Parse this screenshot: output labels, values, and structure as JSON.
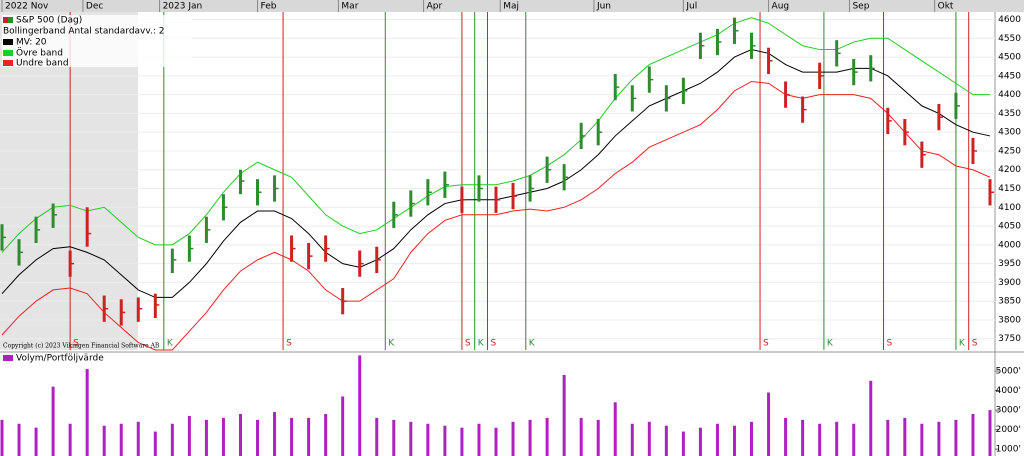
{
  "chart_data": {
    "type": "ohlc",
    "title": "S&P 500 (Dag)",
    "indicator_label": "Bollingerband  Antal standardavv.: 2",
    "copyright": "Copyright (c) 2023 Vikingen Financial Software AB",
    "buy_color": "#2e8b2e",
    "sell_color": "#cc2222",
    "x": [
      0,
      4,
      8,
      12,
      16,
      20,
      24,
      28,
      32,
      36,
      40,
      44,
      48,
      52,
      56,
      60,
      64,
      68,
      72,
      76,
      80,
      84,
      88,
      92,
      96,
      100,
      104,
      108,
      112,
      116,
      120,
      124,
      128,
      132,
      136,
      140,
      144,
      148,
      152,
      156,
      160,
      164,
      168,
      172,
      176,
      180,
      184,
      188,
      192,
      196,
      200,
      204,
      208,
      212,
      216,
      220,
      224,
      228,
      232
    ],
    "xlim": [
      0,
      232
    ],
    "xticks": [
      {
        "value": 0,
        "label": "2022 Nov"
      },
      {
        "value": 19,
        "label": "Dec"
      },
      {
        "value": 37,
        "label": "2023 Jan"
      },
      {
        "value": 60,
        "label": "Feb"
      },
      {
        "value": 79,
        "label": "Mar"
      },
      {
        "value": 99,
        "label": "Apr"
      },
      {
        "value": 117,
        "label": "Maj"
      },
      {
        "value": 139,
        "label": "Jun"
      },
      {
        "value": 160,
        "label": "Jul"
      },
      {
        "value": 180,
        "label": "Aug"
      },
      {
        "value": 199,
        "label": "Sep"
      },
      {
        "value": 219,
        "label": "Okt"
      }
    ],
    "high": [
      4055,
      4015,
      4075,
      4110,
      3985,
      4100,
      3865,
      3855,
      3860,
      3870,
      3990,
      4025,
      4075,
      4135,
      4200,
      4175,
      4185,
      4025,
      4005,
      4025,
      3885,
      3985,
      3995,
      4115,
      4145,
      4175,
      4195,
      4155,
      4185,
      4155,
      4165,
      4185,
      4235,
      4215,
      4325,
      4335,
      4455,
      4425,
      4475,
      4425,
      4445,
      4565,
      4575,
      4605,
      4565,
      4525,
      4435,
      4395,
      4485,
      4545,
      4495,
      4505,
      4365,
      4335,
      4275,
      4375,
      4405,
      4285,
      4175
    ],
    "low": [
      3985,
      3945,
      4005,
      4045,
      3915,
      3995,
      3795,
      3785,
      3795,
      3805,
      3925,
      3955,
      4005,
      4065,
      4135,
      4105,
      4115,
      3955,
      3935,
      3955,
      3815,
      3915,
      3925,
      4045,
      4075,
      4105,
      4125,
      4085,
      4115,
      4085,
      4095,
      4115,
      4165,
      4145,
      4255,
      4265,
      4385,
      4355,
      4405,
      4355,
      4375,
      4495,
      4505,
      4535,
      4495,
      4455,
      4365,
      4325,
      4415,
      4475,
      4425,
      4435,
      4295,
      4265,
      4205,
      4305,
      4335,
      4215,
      4105
    ],
    "close": [
      4020,
      3980,
      4040,
      4080,
      3950,
      4030,
      3830,
      3820,
      3830,
      3840,
      3960,
      3990,
      4040,
      4100,
      4170,
      4140,
      4150,
      3990,
      3970,
      3990,
      3850,
      3950,
      3960,
      4080,
      4110,
      4140,
      4160,
      4120,
      4150,
      4120,
      4130,
      4150,
      4200,
      4180,
      4290,
      4300,
      4420,
      4390,
      4440,
      4390,
      4410,
      4530,
      4540,
      4570,
      4530,
      4490,
      4400,
      4360,
      4450,
      4510,
      4460,
      4470,
      4330,
      4300,
      4240,
      4340,
      4370,
      4250,
      4140
    ],
    "series": [
      {
        "name": "MV: 20",
        "color": "#000000",
        "values": [
          3870,
          3920,
          3960,
          3990,
          3995,
          3980,
          3960,
          3920,
          3880,
          3860,
          3860,
          3900,
          3950,
          4010,
          4060,
          4090,
          4090,
          4070,
          4030,
          3980,
          3950,
          3940,
          3960,
          3990,
          4040,
          4080,
          4110,
          4120,
          4120,
          4120,
          4130,
          4140,
          4150,
          4170,
          4200,
          4240,
          4290,
          4330,
          4370,
          4390,
          4410,
          4430,
          4460,
          4500,
          4520,
          4510,
          4480,
          4460,
          4460,
          4460,
          4470,
          4470,
          4450,
          4410,
          4370,
          4350,
          4320,
          4300,
          4290
        ]
      },
      {
        "name": "Övre band",
        "color": "#22cc22",
        "values": [
          3980,
          4030,
          4070,
          4100,
          4105,
          4090,
          4100,
          4060,
          4020,
          4000,
          4000,
          4030,
          4080,
          4140,
          4190,
          4220,
          4200,
          4180,
          4130,
          4080,
          4050,
          4030,
          4040,
          4070,
          4100,
          4130,
          4155,
          4160,
          4160,
          4160,
          4170,
          4185,
          4210,
          4240,
          4280,
          4330,
          4390,
          4440,
          4480,
          4500,
          4520,
          4540,
          4560,
          4590,
          4605,
          4590,
          4560,
          4530,
          4520,
          4520,
          4540,
          4550,
          4550,
          4520,
          4490,
          4460,
          4430,
          4400,
          4400
        ]
      },
      {
        "name": "Undre band",
        "color": "#ee2222",
        "values": [
          3760,
          3810,
          3850,
          3880,
          3885,
          3870,
          3820,
          3780,
          3740,
          3720,
          3720,
          3770,
          3820,
          3880,
          3930,
          3960,
          3980,
          3960,
          3930,
          3880,
          3850,
          3850,
          3880,
          3910,
          3980,
          4030,
          4065,
          4080,
          4080,
          4080,
          4090,
          4095,
          4090,
          4100,
          4120,
          4150,
          4190,
          4220,
          4260,
          4280,
          4300,
          4320,
          4360,
          4410,
          4435,
          4430,
          4400,
          4390,
          4400,
          4400,
          4400,
          4390,
          4350,
          4300,
          4250,
          4240,
          4210,
          4200,
          4180
        ]
      }
    ],
    "signals": [
      {
        "x": 16,
        "label": "S"
      },
      {
        "x": 38,
        "label": "K"
      },
      {
        "x": 66,
        "label": "S"
      },
      {
        "x": 90,
        "label": "K"
      },
      {
        "x": 108,
        "label": "S"
      },
      {
        "x": 111,
        "label": "K"
      },
      {
        "x": 114,
        "label": "S"
      },
      {
        "x": 123,
        "label": "K"
      },
      {
        "x": 178,
        "label": "S"
      },
      {
        "x": 193,
        "label": "K"
      },
      {
        "x": 207,
        "label": "S"
      },
      {
        "x": 224,
        "label": "K"
      },
      {
        "x": 227,
        "label": "S"
      }
    ],
    "ylim": [
      3720,
      4620
    ],
    "yticks": [
      3750,
      3800,
      3850,
      3900,
      3950,
      4000,
      4050,
      4100,
      4150,
      4200,
      4250,
      4300,
      4350,
      4400,
      4450,
      4500,
      4550,
      4600
    ],
    "volume": {
      "name": "Volym/Portföljvärde",
      "color": "#b020c0",
      "values": [
        2500,
        2300,
        2100,
        4200,
        2300,
        5100,
        2200,
        2300,
        2400,
        1900,
        2300,
        2700,
        2500,
        2600,
        2800,
        2500,
        2900,
        2600,
        2600,
        2800,
        3700,
        5800,
        2600,
        2500,
        2400,
        2300,
        2200,
        2100,
        2300,
        2100,
        2400,
        2500,
        2600,
        4800,
        2600,
        2500,
        3400,
        2300,
        2400,
        2200,
        1900,
        2100,
        2300,
        2200,
        2400,
        3900,
        2600,
        2500,
        2300,
        2400,
        2300,
        4500,
        2500,
        2600,
        2300,
        2400,
        2500,
        2800,
        3000
      ],
      "ylim": [
        650,
        5820
      ],
      "yticks": [
        {
          "value": 1000,
          "label": "1000'"
        },
        {
          "value": 2000,
          "label": "2000'"
        },
        {
          "value": 3000,
          "label": "3000'"
        },
        {
          "value": 4000,
          "label": "4000'"
        },
        {
          "value": 5000,
          "label": "5000'"
        }
      ]
    }
  }
}
